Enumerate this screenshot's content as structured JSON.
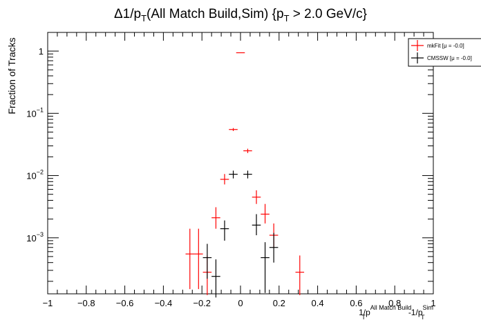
{
  "chart_data": {
    "type": "scatter",
    "title": "Δ1/p_T(All Match Build,Sim) {p_T > 2.0 GeV/c}",
    "title_parts": [
      {
        "text": "Δ1/p",
        "sub": false
      },
      {
        "text": "T",
        "sub": true
      },
      {
        "text": "(All Match Build,Sim) {p",
        "sub": false
      },
      {
        "text": "T",
        "sub": true
      },
      {
        "text": " > 2.0 GeV/c}",
        "sub": false
      }
    ],
    "xlabel": "1/p_T^{All Match Build} -1/p_T^{Sim}",
    "xlabel_parts": {
      "a": "1/p",
      "a_sub": "T",
      "a_sup": "All Match Build",
      "b": "-1/p",
      "b_sub": "T",
      "b_sup": "Sim"
    },
    "ylabel": "Fraction of Tracks",
    "xlim": [
      -1,
      1
    ],
    "ylim_log10": [
      -3.9,
      0.3
    ],
    "yscale": "log",
    "x_tick_labels": [
      "−1",
      "−0.8",
      "−0.6",
      "−0.4",
      "−0.2",
      "0",
      "0.2",
      "0.4",
      "0.6",
      "0.8",
      "1"
    ],
    "x_tick_values": [
      -1,
      -0.8,
      -0.6,
      -0.4,
      -0.2,
      0,
      0.2,
      0.4,
      0.6,
      0.8,
      1
    ],
    "y_tick_labels": [
      {
        "base": "1",
        "exp": "",
        "value": 1
      },
      {
        "base": "10",
        "exp": "−1",
        "value": 0.1
      },
      {
        "base": "10",
        "exp": "−2",
        "value": 0.01
      },
      {
        "base": "10",
        "exp": "−3",
        "value": 0.001
      }
    ],
    "grid": false,
    "legend_position": "top-right",
    "bin_width": 0.045,
    "series": [
      {
        "name": "mkFit  [μ = -0.0]",
        "color": "#ff0000",
        "points": [
          {
            "x": -0.2625,
            "y": 0.00055,
            "ylo": 0.00015,
            "yhi": 0.0014
          },
          {
            "x": -0.2175,
            "y": 0.00055,
            "ylo": 0.00015,
            "yhi": 0.0014
          },
          {
            "x": -0.1725,
            "y": 0.00028,
            "ylo": 0.00012,
            "yhi": 0.00052
          },
          {
            "x": -0.1275,
            "y": 0.0021,
            "ylo": 0.0014,
            "yhi": 0.0031
          },
          {
            "x": -0.0825,
            "y": 0.0087,
            "ylo": 0.0072,
            "yhi": 0.0106
          },
          {
            "x": -0.0375,
            "y": 0.055,
            "ylo": 0.052,
            "yhi": 0.058
          },
          {
            "x": 0.0,
            "y": 0.94,
            "ylo": 0.93,
            "yhi": 0.95
          },
          {
            "x": 0.0375,
            "y": 0.025,
            "ylo": 0.023,
            "yhi": 0.027
          },
          {
            "x": 0.0825,
            "y": 0.0045,
            "ylo": 0.0035,
            "yhi": 0.0058
          },
          {
            "x": 0.1275,
            "y": 0.0024,
            "ylo": 0.0017,
            "yhi": 0.0035
          },
          {
            "x": 0.1725,
            "y": 0.0011,
            "ylo": 0.0007,
            "yhi": 0.0017
          },
          {
            "x": 0.3075,
            "y": 0.00028,
            "ylo": 0.00012,
            "yhi": 0.00052
          }
        ]
      },
      {
        "name": "CMSSW  [μ = -0.0]",
        "color": "#000000",
        "points": [
          {
            "x": -0.1725,
            "y": 0.00048,
            "ylo": 0.00022,
            "yhi": 0.0008
          },
          {
            "x": -0.1275,
            "y": 0.00024,
            "ylo": 0.00011,
            "yhi": 0.00045
          },
          {
            "x": -0.0825,
            "y": 0.0014,
            "ylo": 0.0009,
            "yhi": 0.0019
          },
          {
            "x": -0.0375,
            "y": 0.0105,
            "ylo": 0.009,
            "yhi": 0.012
          },
          {
            "x": 0.0375,
            "y": 0.0105,
            "ylo": 0.009,
            "yhi": 0.012
          },
          {
            "x": 0.0825,
            "y": 0.0016,
            "ylo": 0.0011,
            "yhi": 0.0024
          },
          {
            "x": 0.1275,
            "y": 0.00048,
            "ylo": 0.00013,
            "yhi": 0.00085
          },
          {
            "x": 0.1725,
            "y": 0.0007,
            "ylo": 0.0004,
            "yhi": 0.0012
          }
        ]
      }
    ]
  }
}
